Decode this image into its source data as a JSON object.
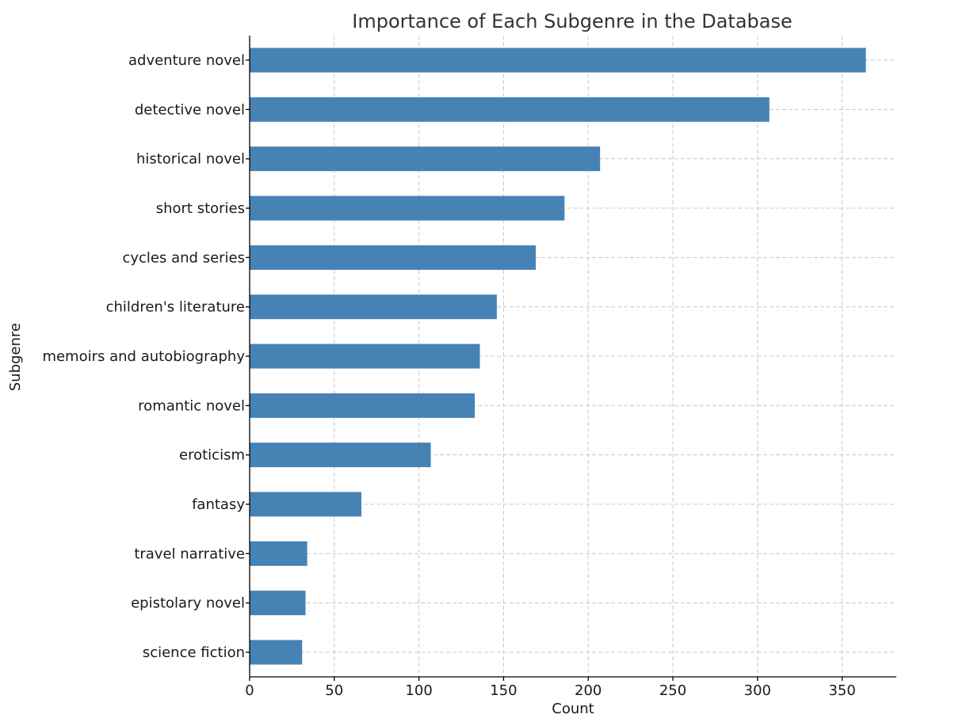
{
  "chart_data": {
    "type": "bar",
    "orientation": "horizontal",
    "title": "Importance of Each Subgenre in the Database",
    "xlabel": "Count",
    "ylabel": "Subgenre",
    "categories": [
      "adventure novel",
      "detective novel",
      "historical novel",
      "short stories",
      "cycles and series",
      "children's literature",
      "memoirs and autobiography",
      "romantic novel",
      "eroticism",
      "fantasy",
      "travel narrative",
      "epistolary novel",
      "science fiction"
    ],
    "values": [
      364,
      307,
      207,
      186,
      169,
      146,
      136,
      133,
      107,
      66,
      34,
      33,
      31
    ],
    "xlim": [
      0,
      382
    ],
    "xticks": [
      0,
      50,
      100,
      150,
      200,
      250,
      300,
      350
    ],
    "grid": true,
    "bar_color": "#4682b4",
    "grid_color": "#c8c8c8"
  }
}
